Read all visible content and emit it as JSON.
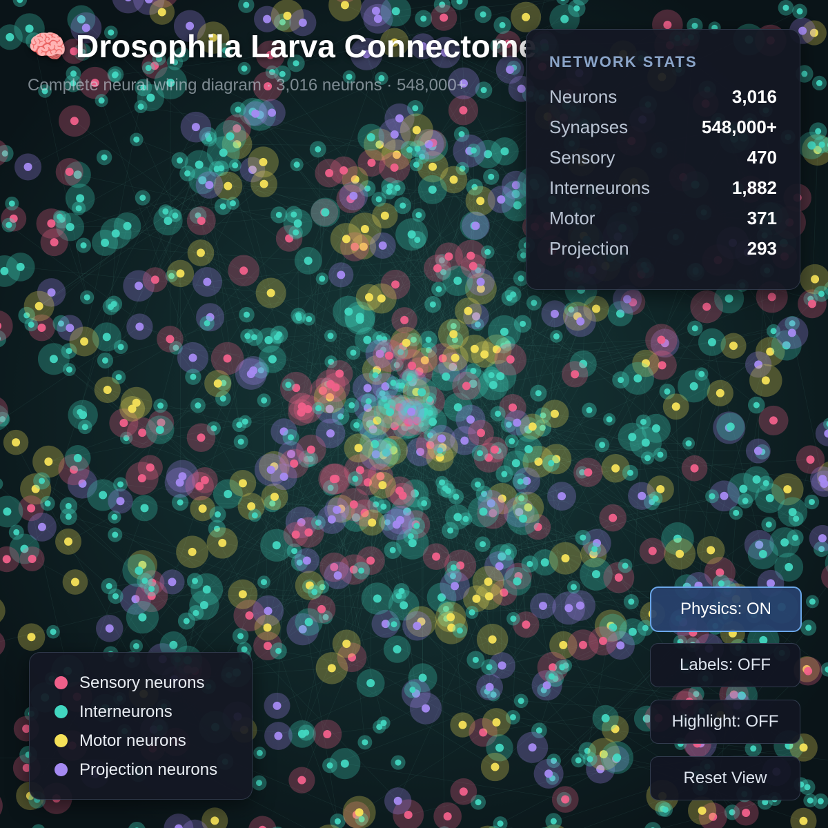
{
  "header": {
    "title": "🧠 Drosophila Larva Connectome",
    "subtitle": "Complete neural wiring diagram · 3,016 neurons · 548,000+"
  },
  "stats": {
    "title": "NETWORK STATS",
    "rows": [
      {
        "label": "Neurons",
        "value": "3,016"
      },
      {
        "label": "Synapses",
        "value": "548,000+"
      },
      {
        "label": "Sensory",
        "value": "470"
      },
      {
        "label": "Interneurons",
        "value": "1,882"
      },
      {
        "label": "Motor",
        "value": "371"
      },
      {
        "label": "Projection",
        "value": "293"
      }
    ]
  },
  "legend": {
    "items": [
      "Sensory neurons",
      "Interneurons",
      "Motor neurons",
      "Projection neurons"
    ]
  },
  "controls": {
    "buttons": [
      "Physics: ON",
      "Labels: OFF",
      "Highlight: OFF",
      "Reset View"
    ]
  }
}
